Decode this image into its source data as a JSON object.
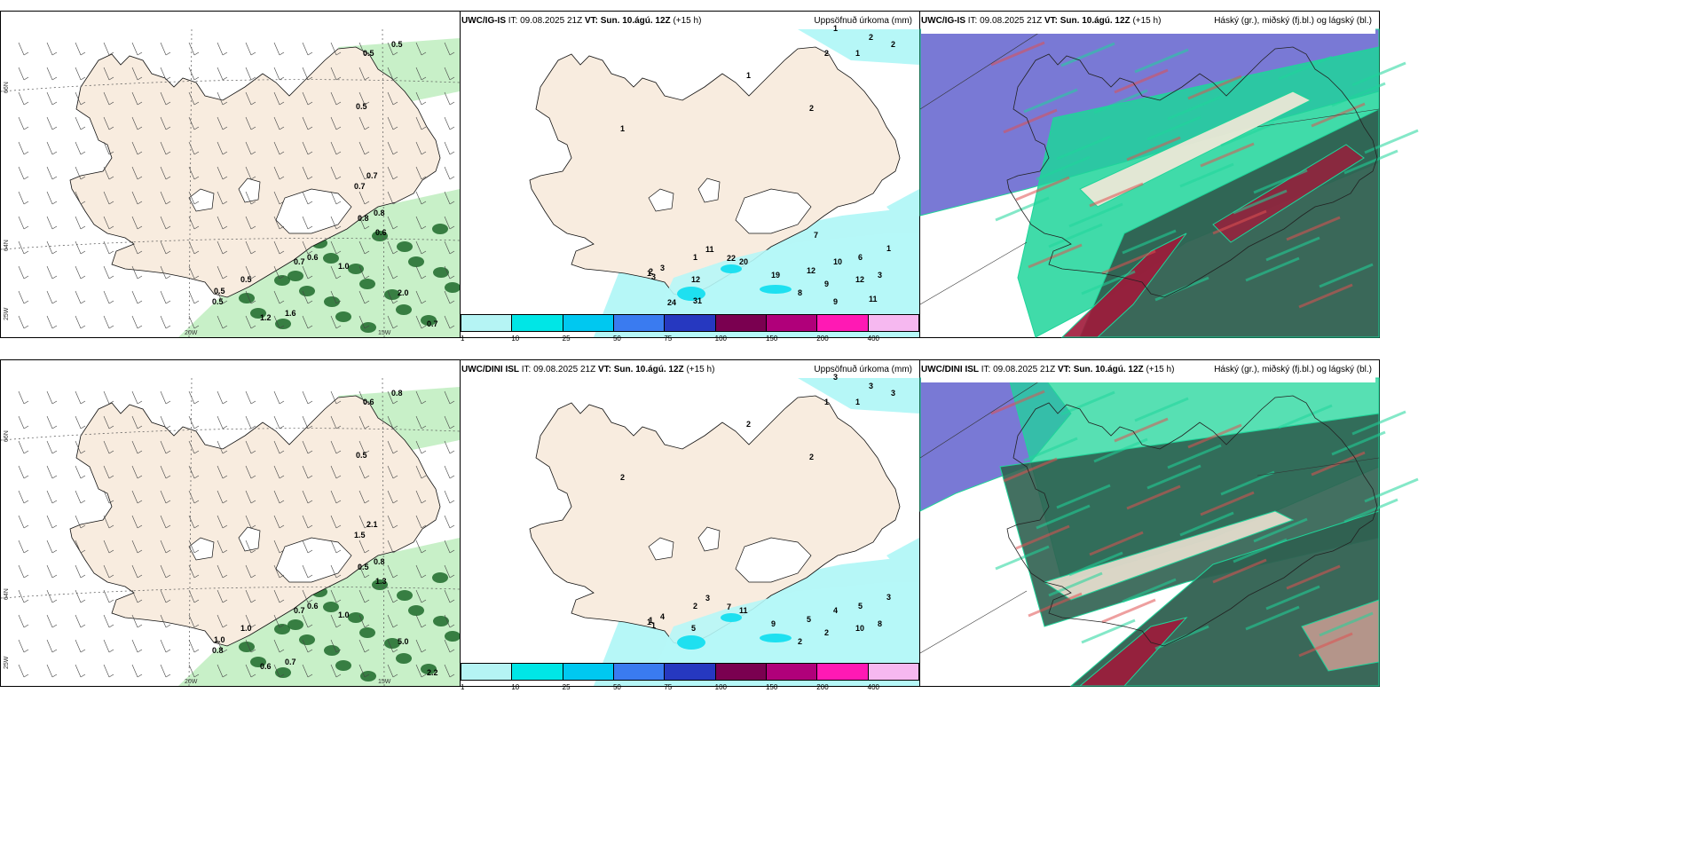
{
  "header_common": {
    "it_text": "IT: 09.08.2025 21Z",
    "vt_label": "VT:",
    "vt_value": "Sun. 10.ágú. 12Z",
    "lead": "(+15 h)"
  },
  "rows": [
    {
      "model": "UWC/IG-IS",
      "mid_title": "Uppsöfnuð úrkoma (mm)",
      "right_title": "Háský (gr.), miðský (fj.bl.) og lágský (bl.)"
    },
    {
      "model": "UWC/DINI ISL",
      "mid_title": "Uppsöfnuð úrkoma (mm)",
      "right_title": "Háský (gr.), miðský (fj.bl.) og lágský (bl.)"
    }
  ],
  "axes": {
    "lat_66": "66N",
    "lat_64": "64N",
    "lon_25": "25W",
    "lon_20": "20W",
    "lon_15": "15W"
  },
  "colorbar": {
    "labels": [
      "1",
      "10",
      "25",
      "50",
      "75",
      "100",
      "150",
      "200",
      "400"
    ],
    "colors": [
      "#b5f4f4",
      "#00e6e6",
      "#00c8f0",
      "#3a7bf0",
      "#2638c0",
      "#7a0050",
      "#b0007a",
      "#ff19b4",
      "#f6b8f0"
    ]
  },
  "colors": {
    "land": "#f8ecdf",
    "ocean": "#ffffff",
    "precip_light": "#b6f7f7",
    "precip_mid": "#1ee0f0",
    "wind_green_light": "#c8f0c8",
    "wind_green_dark": "#1d6a2a",
    "cloud_high": "#2f6050",
    "cloud_mid": "#1fd59a",
    "cloud_low": "#6a6ad0",
    "cloud_red": "#a01a3a"
  },
  "panel1_top_values": [
    "0.5",
    "0.5",
    "0.5",
    "0.7",
    "0.7",
    "0.8",
    "0.8",
    "0.6",
    "0.7",
    "1.0",
    "0.6",
    "0.5",
    "0.5",
    "0.5",
    "2.0",
    "1.2",
    "1.6",
    "0.7"
  ],
  "panel2_top_values": [
    "1",
    "2",
    "2",
    "2",
    "1",
    "1",
    "2",
    "1",
    "1",
    "2",
    "1",
    "3",
    "3",
    "11",
    "22",
    "20",
    "19",
    "12",
    "10",
    "6",
    "1",
    "3",
    "12",
    "9",
    "8",
    "12",
    "24",
    "31",
    "7",
    "9",
    "11"
  ],
  "panel1_bot_values": [
    "0.8",
    "0.6",
    "0.5",
    "1.5",
    "2.1",
    "0.5",
    "0.8",
    "1.3",
    "0.7",
    "1.0",
    "0.6",
    "1.0",
    "0.8",
    "1.0",
    "5.0",
    "0.6",
    "0.7",
    "2.2"
  ],
  "panel2_bot_values": [
    "3",
    "3",
    "3",
    "1",
    "1",
    "2",
    "2",
    "2",
    "2",
    "1",
    "1",
    "1",
    "4",
    "3",
    "7",
    "11",
    "9",
    "5",
    "4",
    "5",
    "3",
    "8",
    "10",
    "2",
    "2",
    "5"
  ]
}
